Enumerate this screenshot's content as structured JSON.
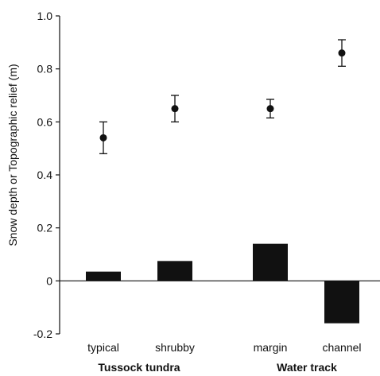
{
  "chart_data": {
    "type": "bar",
    "categories": [
      "typical",
      "shrubby",
      "margin",
      "channel"
    ],
    "groups": [
      {
        "label": "Tussock tundra",
        "categories": [
          "typical",
          "shrubby"
        ]
      },
      {
        "label": "Water track",
        "categories": [
          "margin",
          "channel"
        ]
      }
    ],
    "series": [
      {
        "kind": "bar",
        "values": [
          0.035,
          0.075,
          0.14,
          -0.16
        ]
      },
      {
        "kind": "point_errorbar",
        "values": [
          0.54,
          0.65,
          0.65,
          0.86
        ],
        "errors": [
          0.06,
          0.05,
          0.035,
          0.05
        ]
      }
    ],
    "ylabel": "Snow depth or Topographic relief (m)",
    "ylim": [
      -0.2,
      1.0
    ],
    "yticks": [
      "-0.2",
      "0",
      "0.2",
      "0.4",
      "0.6",
      "0.8",
      "1.0"
    ],
    "yticks_values": [
      -0.2,
      0,
      0.2,
      0.4,
      0.6,
      0.8,
      1.0
    ],
    "grid": false,
    "colors": {
      "bar": "#111111",
      "point": "#111111",
      "axis": "#111111"
    }
  }
}
